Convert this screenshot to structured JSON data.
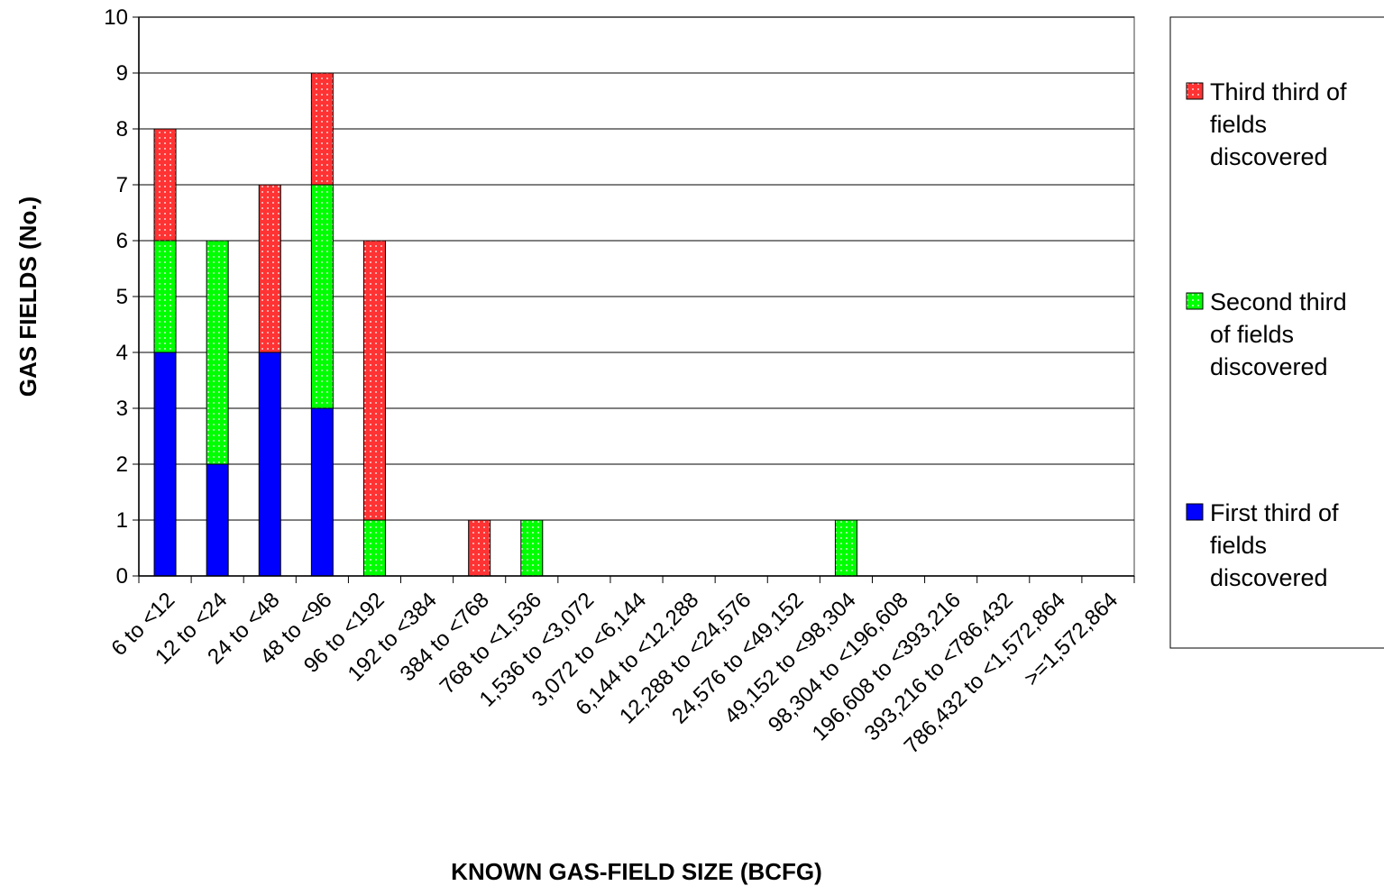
{
  "chart_data": {
    "type": "bar",
    "stacked": true,
    "title": "",
    "xlabel": "KNOWN GAS-FIELD SIZE (BCFG)",
    "ylabel": "GAS FIELDS (No.)",
    "ylim": [
      0,
      10
    ],
    "yticks": [
      0,
      1,
      2,
      3,
      4,
      5,
      6,
      7,
      8,
      9,
      10
    ],
    "grid": true,
    "legend_position": "right",
    "categories": [
      "6 to <12",
      "12 to <24",
      "24 to <48",
      "48 to <96",
      "96 to <192",
      "192 to <384",
      "384 to <768",
      "768 to <1,536",
      "1,536 to <3,072",
      "3,072 to <6,144",
      "6,144 to <12,288",
      "12,288 to <24,576",
      "24,576 to <49,152",
      "49,152 to <98,304",
      "98,304 to <196,608",
      "196,608 to <393,216",
      "393,216 to <786,432",
      "786,432 to <1,572,864",
      ">=1,572,864"
    ],
    "series": [
      {
        "name": "First third of fields discovered",
        "color": "#0000ff",
        "values": [
          4,
          2,
          4,
          3,
          0,
          0,
          0,
          0,
          0,
          0,
          0,
          0,
          0,
          0,
          0,
          0,
          0,
          0,
          0
        ]
      },
      {
        "name": "Second third of fields discovered",
        "color": "#00ff00",
        "values": [
          2,
          4,
          0,
          4,
          1,
          0,
          0,
          1,
          0,
          0,
          0,
          0,
          0,
          1,
          0,
          0,
          0,
          0,
          0
        ]
      },
      {
        "name": "Third third of fields discovered",
        "color": "#ff3333",
        "values": [
          2,
          0,
          3,
          2,
          5,
          0,
          1,
          0,
          0,
          0,
          0,
          0,
          0,
          0,
          0,
          0,
          0,
          0,
          0
        ]
      }
    ],
    "legend_lines": [
      [
        "Third third of",
        "fields",
        "discovered"
      ],
      [
        "Second third",
        "of fields",
        "discovered"
      ],
      [
        "First third of",
        "fields",
        "discovered"
      ]
    ]
  }
}
